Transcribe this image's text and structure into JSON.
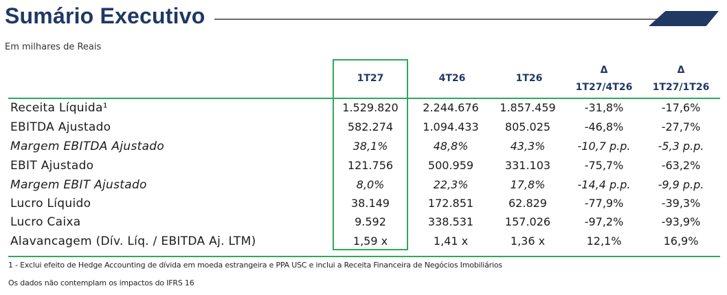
{
  "header": {
    "title": "Sumário Executivo",
    "subtitle": "Em milhares de Reais"
  },
  "table": {
    "columns": [
      {
        "line1": "",
        "line2": "1T27"
      },
      {
        "line1": "",
        "line2": "4T26"
      },
      {
        "line1": "",
        "line2": "1T26"
      },
      {
        "line1": "Δ",
        "line2": "1T27/4T26"
      },
      {
        "line1": "Δ",
        "line2": "1T27/1T26"
      }
    ],
    "rows": [
      {
        "label": "Receita Líquida¹",
        "italic": false,
        "values": [
          "1.529.820",
          "2.244.676",
          "1.857.459",
          "-31,8%",
          "-17,6%"
        ]
      },
      {
        "label": "EBITDA Ajustado",
        "italic": false,
        "values": [
          "582.274",
          "1.094.433",
          "805.025",
          "-46,8%",
          "-27,7%"
        ]
      },
      {
        "label": "Margem EBITDA Ajustado",
        "italic": true,
        "values": [
          "38,1%",
          "48,8%",
          "43,3%",
          "-10,7 p.p.",
          "-5,3 p.p."
        ]
      },
      {
        "label": "EBIT Ajustado",
        "italic": false,
        "values": [
          "121.756",
          "500.959",
          "331.103",
          "-75,7%",
          "-63,2%"
        ]
      },
      {
        "label": "Margem EBIT Ajustado",
        "italic": true,
        "values": [
          "8,0%",
          "22,3%",
          "17,8%",
          "-14,4 p.p.",
          "-9,9 p.p."
        ]
      },
      {
        "label": "Lucro Líquido",
        "italic": false,
        "values": [
          "38.149",
          "172.851",
          "62.829",
          "-77,9%",
          "-39,3%"
        ]
      },
      {
        "label": "Lucro Caixa",
        "italic": false,
        "values": [
          "9.592",
          "338.531",
          "157.026",
          "-97,2%",
          "-93,9%"
        ]
      },
      {
        "label": "Alavancagem (Dív. Líq. / EBITDA Aj. LTM)",
        "italic": false,
        "values": [
          "1,59 x",
          "1,41 x",
          "1,36 x",
          "12,1%",
          "16,9%"
        ]
      }
    ]
  },
  "footnotes": {
    "note1": "1 - Exclui efeito de Hedge Accounting de dívida em moeda estrangeira e PPA USC e inclui a Receita Financeira de Negócios Imobiliários",
    "note2": "Os dados não contemplam os impactos do IFRS 16"
  },
  "colors": {
    "title": "#1f3864",
    "highlight": "#2ea85a"
  }
}
